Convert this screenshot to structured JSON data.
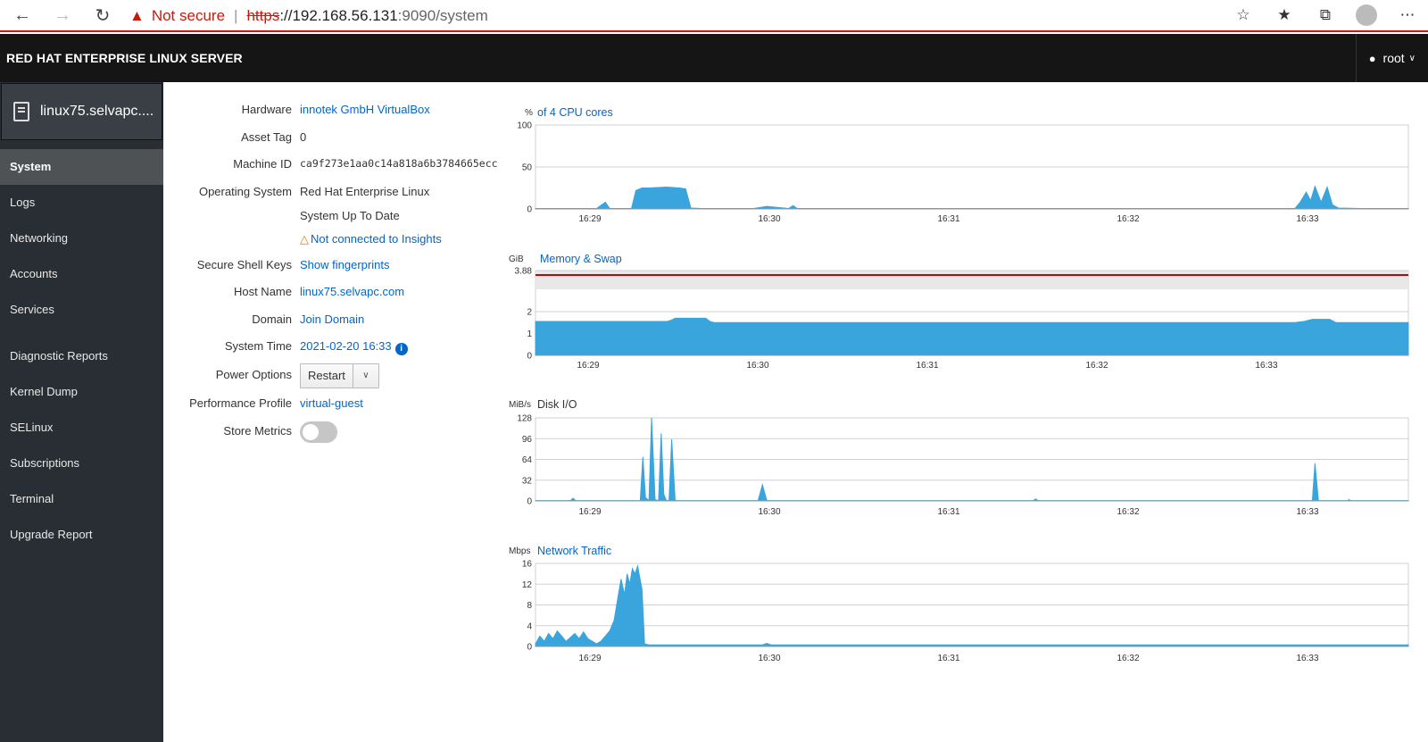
{
  "browser": {
    "not_secure": "Not secure",
    "url_scheme": "https",
    "url_host": "://192.168.56.131",
    "url_path": ":9090/system"
  },
  "masthead": {
    "brand": "RED HAT ENTERPRISE LINUX SERVER",
    "user": "root"
  },
  "sidebar": {
    "host": "linux75.selvapc....",
    "items": [
      {
        "label": "System",
        "active": true
      },
      {
        "label": "Logs"
      },
      {
        "label": "Networking"
      },
      {
        "label": "Accounts"
      },
      {
        "label": "Services"
      },
      {
        "label": "Diagnostic Reports"
      },
      {
        "label": "Kernel Dump"
      },
      {
        "label": "SELinux"
      },
      {
        "label": "Subscriptions"
      },
      {
        "label": "Terminal"
      },
      {
        "label": "Upgrade Report"
      }
    ]
  },
  "details": {
    "hardware_label": "Hardware",
    "hardware": "innotek GmbH VirtualBox",
    "asset_tag_label": "Asset Tag",
    "asset_tag": "0",
    "machine_id_label": "Machine ID",
    "machine_id": "ca9f273e1aa0c14a818a6b3784665ecc",
    "os_label": "Operating System",
    "os": "Red Hat Enterprise Linux",
    "os_status": "System Up To Date",
    "insights": "Not connected to Insights",
    "ssh_label": "Secure Shell Keys",
    "ssh": "Show fingerprints",
    "hostname_label": "Host Name",
    "hostname": "linux75.selvapc.com",
    "domain_label": "Domain",
    "domain": "Join Domain",
    "time_label": "System Time",
    "time": "2021-02-20 16:33",
    "power_label": "Power Options",
    "power_button": "Restart",
    "profile_label": "Performance Profile",
    "profile": "virtual-guest",
    "metrics_label": "Store Metrics",
    "metrics_enabled": false
  },
  "colors": {
    "accent": "#0066cc",
    "graph_fill": "#39a5dc",
    "swap_line": "#cc0000",
    "masthead": "#151515",
    "sidebar": "#292e34"
  },
  "chart_data": [
    {
      "type": "area",
      "unit": "%",
      "title": "of 4 CPU cores",
      "title_is_link": true,
      "x_ticks": [
        "16:29",
        "16:30",
        "16:31",
        "16:32",
        "16:33"
      ],
      "y_ticks": [
        "0",
        "50",
        "100"
      ],
      "ylim": [
        0,
        100
      ],
      "xlim": [
        0,
        100
      ],
      "x": [
        0,
        2,
        7,
        8,
        8.5,
        11,
        11.5,
        12.2,
        13,
        15,
        16.5,
        17.2,
        17.8,
        19,
        25,
        26.5,
        29,
        29.5,
        30,
        45,
        60,
        75,
        87,
        87.6,
        88.3,
        88.8,
        89.3,
        90,
        90.7,
        91.3,
        92,
        95,
        100
      ],
      "values": [
        0.5,
        0.5,
        0.5,
        8,
        0.5,
        0.5,
        22,
        25,
        25,
        26,
        25,
        24,
        1,
        0.5,
        0.5,
        3,
        0.5,
        4,
        0.5,
        0.5,
        0.5,
        0.5,
        0.5,
        8,
        20,
        10,
        27,
        8,
        26,
        5,
        1,
        0.5,
        0.5
      ]
    },
    {
      "type": "area",
      "unit": "GiB",
      "title": "Memory & Swap",
      "title_is_link": true,
      "x_ticks": [
        "16:29",
        "16:30",
        "16:31",
        "16:32",
        "16:33"
      ],
      "y_ticks": [
        "0",
        "1",
        "2",
        "3.88"
      ],
      "ylim": [
        0,
        3.88
      ],
      "xlim": [
        0,
        100
      ],
      "swap_line": 3.88,
      "x": [
        0,
        15,
        15.5,
        16,
        19.5,
        20,
        20.5,
        40,
        80,
        87,
        88,
        89,
        91,
        91.7,
        100
      ],
      "values": [
        1.55,
        1.55,
        1.6,
        1.7,
        1.7,
        1.55,
        1.5,
        1.5,
        1.5,
        1.5,
        1.55,
        1.65,
        1.65,
        1.5,
        1.5
      ]
    },
    {
      "type": "area",
      "unit": "MiB/s",
      "title": "Disk I/O",
      "title_is_link": false,
      "x_ticks": [
        "16:29",
        "16:30",
        "16:31",
        "16:32",
        "16:33"
      ],
      "y_ticks": [
        "0",
        "32",
        "64",
        "96",
        "128"
      ],
      "ylim": [
        0,
        128
      ],
      "xlim": [
        0,
        100
      ],
      "x": [
        0,
        4,
        4.3,
        4.6,
        12,
        12.3,
        12.6,
        13,
        13.3,
        13.7,
        14.1,
        14.4,
        14.7,
        15,
        15.3,
        15.6,
        16,
        16.2,
        16.5,
        16.8,
        25.5,
        26,
        26.5,
        57,
        57.3,
        57.6,
        89,
        89.3,
        89.7,
        93,
        93.2,
        93.4,
        100
      ],
      "values": [
        0.5,
        0.5,
        4,
        0.5,
        0.5,
        68,
        5,
        0.5,
        128,
        2,
        0.5,
        104,
        10,
        0.5,
        1,
        95,
        1,
        0.5,
        0.5,
        0.5,
        0.5,
        25,
        0.5,
        0.5,
        3,
        0.5,
        0.5,
        58,
        0.5,
        0.5,
        2,
        0.5,
        0.5
      ]
    },
    {
      "type": "area",
      "unit": "Mbps",
      "title": "Network Traffic",
      "title_is_link": true,
      "x_ticks": [
        "16:29",
        "16:30",
        "16:31",
        "16:32",
        "16:33"
      ],
      "y_ticks": [
        "0",
        "4",
        "8",
        "12",
        "16"
      ],
      "ylim": [
        0,
        16
      ],
      "xlim": [
        0,
        100
      ],
      "x": [
        0,
        0.5,
        1,
        1.5,
        2,
        2.5,
        3,
        3.5,
        4.5,
        5,
        5.5,
        6,
        7,
        7.5,
        8,
        8.5,
        9,
        9.4,
        9.8,
        10.2,
        10.5,
        10.8,
        11.1,
        11.4,
        11.7,
        12.2,
        12.5,
        13,
        26,
        26.5,
        27,
        100
      ],
      "values": [
        0.5,
        2,
        1,
        2.5,
        1.5,
        3,
        2,
        1,
        2.5,
        1.5,
        2.8,
        1.5,
        0.5,
        1,
        2,
        3,
        5,
        9,
        13,
        10,
        14,
        12,
        15,
        14,
        15.5,
        11,
        0.5,
        0.3,
        0.3,
        0.6,
        0.3,
        0.3
      ]
    }
  ]
}
